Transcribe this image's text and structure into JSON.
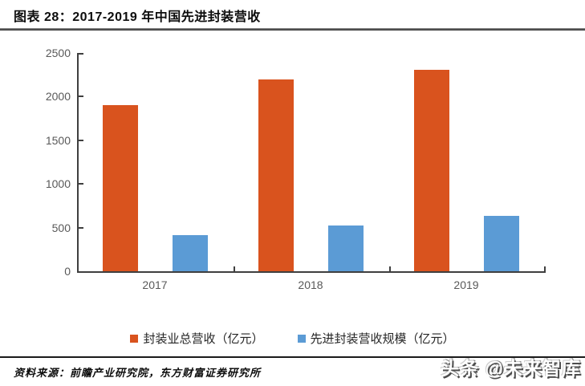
{
  "title": "图表 28：2017-2019 年中国先进封装营收",
  "source": "资料来源：前瞻产业研究院，东方财富证券研究所",
  "watermark": "头条 @未来智库",
  "colors": {
    "series1": "#D9531E",
    "series2": "#5B9BD5",
    "axis": "#3F3F3F",
    "tick_label": "#595959"
  },
  "chart_data": {
    "type": "bar",
    "categories": [
      "2017",
      "2018",
      "2019"
    ],
    "series": [
      {
        "name": "封装业总营收（亿元）",
        "color": "#D9531E",
        "values": [
          1900,
          2200,
          2310
        ]
      },
      {
        "name": "先进封装营收规模（亿元）",
        "color": "#5B9BD5",
        "values": [
          410,
          520,
          630
        ]
      }
    ],
    "title": "2017-2019 年中国先进封装营收",
    "xlabel": "",
    "ylabel": "",
    "ylim": [
      0,
      2500
    ],
    "ytick_interval": 500,
    "ytick_labels": [
      "0",
      "500",
      "1000",
      "1500",
      "2000",
      "2500"
    ],
    "grid": false,
    "legend_position": "bottom"
  }
}
